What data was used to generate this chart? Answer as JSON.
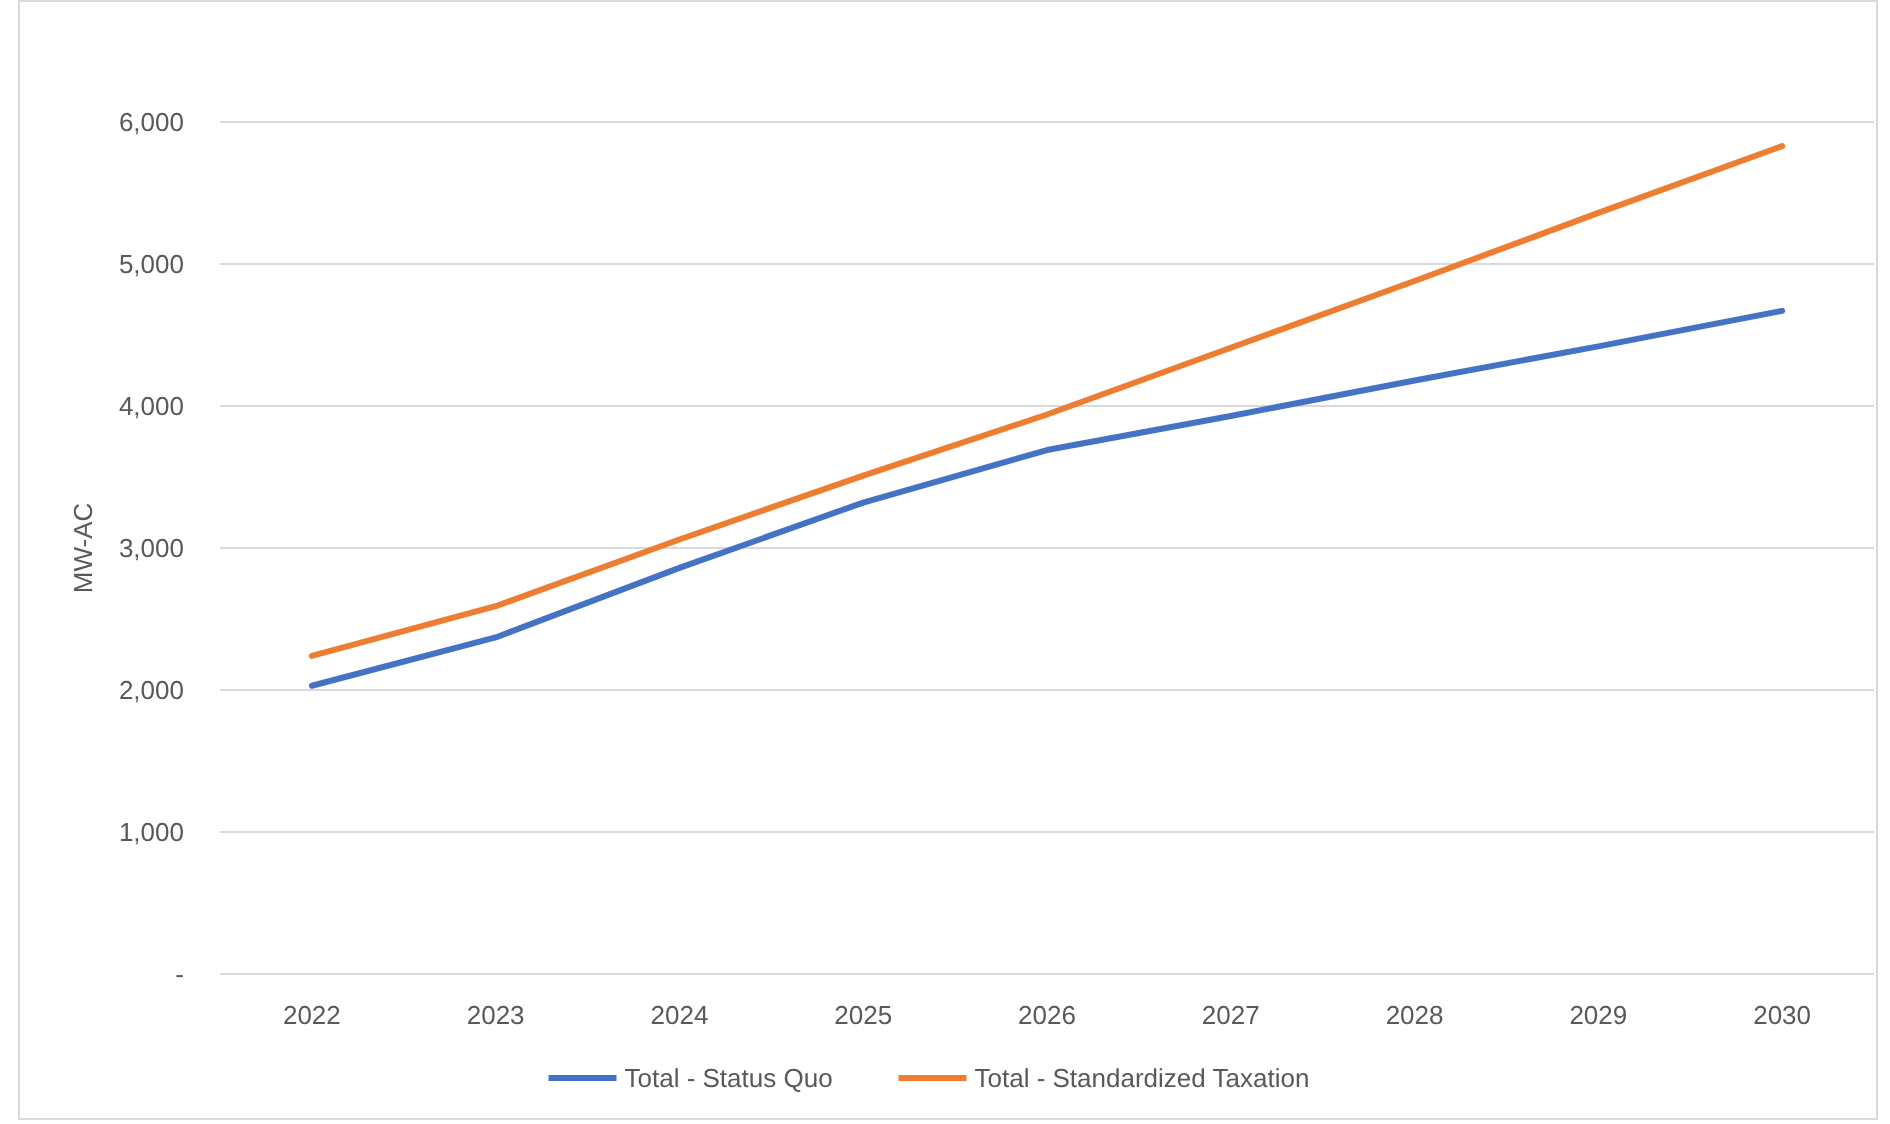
{
  "chart_data": {
    "type": "line",
    "categories": [
      "2022",
      "2023",
      "2024",
      "2025",
      "2026",
      "2027",
      "2028",
      "2029",
      "2030"
    ],
    "series": [
      {
        "name": "Total - Status Quo",
        "color": "#4472c4",
        "values": [
          2030,
          2370,
          2860,
          3320,
          3690,
          3930,
          4180,
          4420,
          4670
        ]
      },
      {
        "name": "Total - Standardized Taxation",
        "color": "#ed7d31",
        "values": [
          2240,
          2590,
          3060,
          3510,
          3940,
          4410,
          4880,
          5360,
          5830
        ]
      }
    ],
    "ylabel": "MW-AC",
    "ylim": [
      0,
      6000
    ],
    "yticks": [
      {
        "value": 0,
        "label": "-"
      },
      {
        "value": 1000,
        "label": "1,000"
      },
      {
        "value": 2000,
        "label": "2,000"
      },
      {
        "value": 3000,
        "label": "3,000"
      },
      {
        "value": 4000,
        "label": "4,000"
      },
      {
        "value": 5000,
        "label": "5,000"
      },
      {
        "value": 6000,
        "label": "6,000"
      }
    ],
    "grid": "y",
    "legend": "bottom"
  }
}
